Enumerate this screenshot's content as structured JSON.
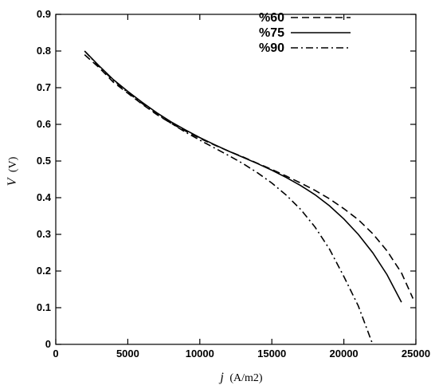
{
  "chart_data": {
    "type": "line",
    "xlabel": {
      "var": "j",
      "unit": "(A/m2)"
    },
    "ylabel": {
      "var": "V",
      "unit": "(V)"
    },
    "xlim": [
      0,
      25000
    ],
    "ylim": [
      0,
      0.9
    ],
    "xticks": [
      0,
      5000,
      10000,
      15000,
      20000,
      25000
    ],
    "yticks": [
      0,
      0.1,
      0.2,
      0.3,
      0.4,
      0.5,
      0.6,
      0.7,
      0.8,
      0.9
    ],
    "grid": false,
    "legend_position": "top-right",
    "series": [
      {
        "name": "%60",
        "style": "dashed",
        "color": "#000000",
        "x": [
          2000,
          3000,
          4000,
          5000,
          6000,
          7000,
          8000,
          9000,
          10000,
          11000,
          12000,
          13000,
          14000,
          15000,
          16000,
          17000,
          18000,
          19000,
          20000,
          21000,
          22000,
          23000,
          24000,
          24800
        ],
        "y": [
          0.79,
          0.755,
          0.715,
          0.685,
          0.655,
          0.627,
          0.603,
          0.582,
          0.562,
          0.544,
          0.527,
          0.511,
          0.494,
          0.477,
          0.459,
          0.44,
          0.42,
          0.397,
          0.37,
          0.34,
          0.302,
          0.255,
          0.195,
          0.125
        ]
      },
      {
        "name": "%75",
        "style": "solid",
        "color": "#000000",
        "x": [
          2000,
          3000,
          4000,
          5000,
          6000,
          7000,
          8000,
          9000,
          10000,
          11000,
          12000,
          13000,
          14000,
          15000,
          16000,
          17000,
          18000,
          19000,
          20000,
          21000,
          22000,
          23000,
          24000
        ],
        "y": [
          0.8,
          0.76,
          0.722,
          0.69,
          0.66,
          0.632,
          0.607,
          0.585,
          0.564,
          0.545,
          0.527,
          0.51,
          0.493,
          0.475,
          0.455,
          0.433,
          0.408,
          0.378,
          0.342,
          0.3,
          0.25,
          0.19,
          0.115
        ]
      },
      {
        "name": "%90",
        "style": "dashdot",
        "color": "#000000",
        "x": [
          2000,
          3000,
          4000,
          5000,
          6000,
          7000,
          8000,
          9000,
          10000,
          11000,
          12000,
          13000,
          14000,
          15000,
          16000,
          17000,
          18000,
          19000,
          20000,
          21000,
          22000
        ],
        "y": [
          0.8,
          0.758,
          0.72,
          0.687,
          0.657,
          0.629,
          0.603,
          0.579,
          0.557,
          0.536,
          0.515,
          0.493,
          0.468,
          0.44,
          0.407,
          0.368,
          0.32,
          0.26,
          0.185,
          0.105,
          0.0
        ]
      }
    ]
  }
}
